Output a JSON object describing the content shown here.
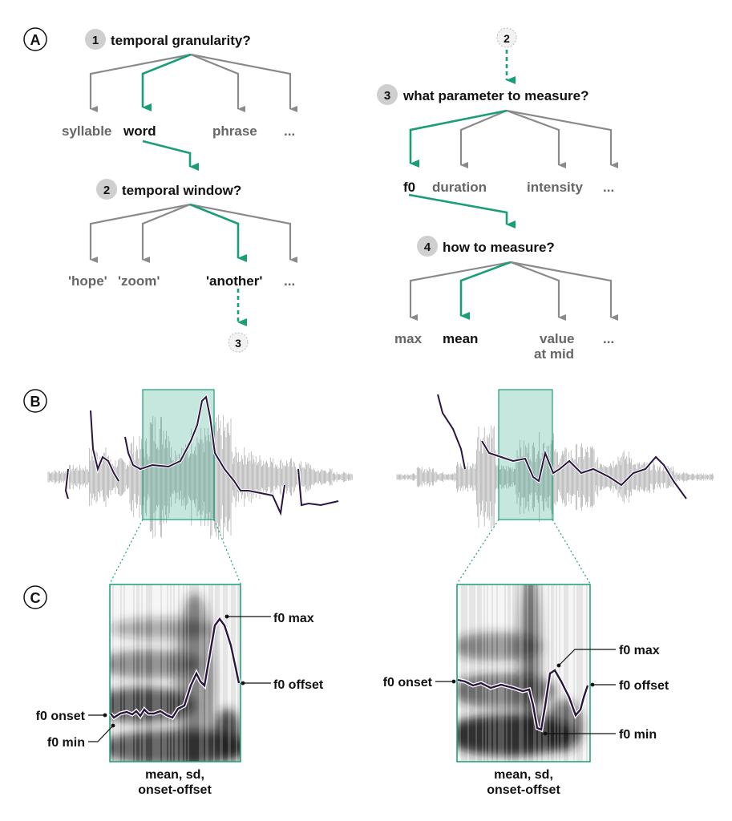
{
  "panels": {
    "a": "A",
    "b": "B",
    "c": "C"
  },
  "colors": {
    "accent": "#1a9e7a",
    "branch": "#8a8a8a",
    "f0_line": "#2a1540",
    "step_circle": "#cfcfcf"
  },
  "tree_left": {
    "step1": {
      "num": "1",
      "question": "temporal granularity?",
      "options": [
        "syllable",
        "word",
        "phrase",
        "..."
      ],
      "selected": "word"
    },
    "step2": {
      "num": "2",
      "question": "temporal window?",
      "options": [
        "'hope'",
        "'zoom'",
        "'another'",
        "..."
      ],
      "selected": "'another'"
    },
    "next": "3"
  },
  "tree_right": {
    "prev": "2",
    "step3": {
      "num": "3",
      "question": "what parameter to measure?",
      "options": [
        "f0",
        "duration",
        "intensity",
        "..."
      ],
      "selected": "f0"
    },
    "step4": {
      "num": "4",
      "question": "how to measure?",
      "options": [
        "max",
        "mean",
        "value",
        "at mid",
        "..."
      ],
      "selected": "mean"
    }
  },
  "spectrogram_left": {
    "labels": {
      "max": "f0 max",
      "offset": "f0 offset",
      "onset": "f0 onset",
      "min": "f0 min"
    },
    "caption": [
      "mean, sd,",
      "onset-offset"
    ]
  },
  "spectrogram_right": {
    "labels": {
      "max": "f0 max",
      "offset": "f0 offset",
      "onset": "f0 onset",
      "min": "f0 min"
    },
    "caption": [
      "mean, sd,",
      "onset-offset"
    ]
  }
}
